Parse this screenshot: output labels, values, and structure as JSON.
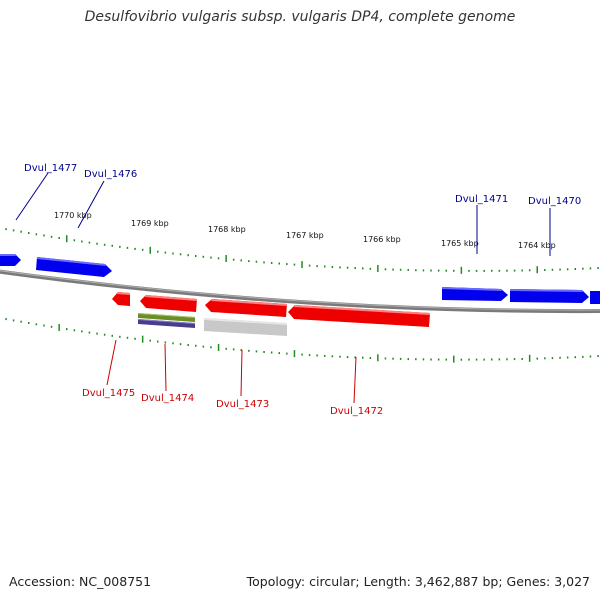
{
  "title": "Desulfovibrio vulgaris subsp. vulgaris DP4, complete genome",
  "footer": {
    "accession": "Accession: NC_008751",
    "summary": "Topology: circular; Length: 3,462,887 bp; Genes: 3,027"
  },
  "colors": {
    "forward_gene": "#0000ff",
    "reverse_gene": "#ff0000",
    "forward_label": "#00008b",
    "reverse_label": "#cc0000",
    "backbone": "#808080",
    "ticks": "#228b22",
    "feature_green": "#6b8e23",
    "feature_blue": "#483d8b",
    "feature_gray": "#c0c0c0"
  },
  "scale": {
    "labels": [
      "1770 kbp",
      "1769 kbp",
      "1768 kbp",
      "1767 kbp",
      "1766 kbp",
      "1765 kbp",
      "1764 kbp"
    ]
  },
  "genes": {
    "forward": [
      "Dvul_1477",
      "Dvul_1476",
      "Dvul_1471",
      "Dvul_1470"
    ],
    "reverse": [
      "Dvul_1475",
      "Dvul_1474",
      "Dvul_1473",
      "Dvul_1472"
    ]
  }
}
